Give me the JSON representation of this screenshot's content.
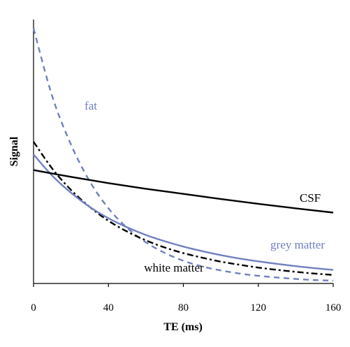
{
  "chart_data": {
    "type": "line",
    "title": "",
    "xlabel": "TE (ms)",
    "ylabel": "Signal",
    "xlim": [
      0,
      160
    ],
    "ylim": [
      0,
      1
    ],
    "xticks": [
      "0",
      "40",
      "80",
      "120",
      "160"
    ],
    "grid": false,
    "legend": "none",
    "series": [
      {
        "name": "fat",
        "color": "#7080c0",
        "dash": "dashed",
        "x": [
          0,
          10,
          20,
          30,
          40,
          50,
          60,
          70,
          80,
          90,
          100,
          110,
          120,
          130,
          140,
          150,
          160
        ],
        "y": [
          0.9,
          0.66,
          0.49,
          0.36,
          0.265,
          0.196,
          0.145,
          0.108,
          0.08,
          0.06,
          0.046,
          0.035,
          0.027,
          0.021,
          0.016,
          0.012,
          0.01
        ]
      },
      {
        "name": "white matter",
        "color": "#000000",
        "dash": "dash-dot",
        "x": [
          0,
          10,
          20,
          30,
          40,
          50,
          60,
          70,
          80,
          90,
          100,
          110,
          120,
          130,
          140,
          150,
          160
        ],
        "y": [
          0.5,
          0.405,
          0.33,
          0.27,
          0.221,
          0.183,
          0.152,
          0.127,
          0.107,
          0.091,
          0.077,
          0.066,
          0.056,
          0.048,
          0.041,
          0.035,
          0.03
        ]
      },
      {
        "name": "grey matter",
        "color": "#7080c0",
        "dash": "solid",
        "x": [
          0,
          10,
          20,
          30,
          40,
          50,
          60,
          70,
          80,
          90,
          100,
          110,
          120,
          130,
          140,
          150,
          160
        ],
        "y": [
          0.455,
          0.38,
          0.32,
          0.27,
          0.23,
          0.198,
          0.171,
          0.149,
          0.13,
          0.114,
          0.1,
          0.088,
          0.078,
          0.069,
          0.061,
          0.054,
          0.048
        ]
      },
      {
        "name": "CSF",
        "color": "#000000",
        "dash": "solid",
        "x": [
          0,
          20,
          40,
          60,
          80,
          100,
          120,
          140,
          160
        ],
        "y": [
          0.4,
          0.376,
          0.354,
          0.334,
          0.316,
          0.298,
          0.281,
          0.265,
          0.25
        ]
      }
    ]
  }
}
